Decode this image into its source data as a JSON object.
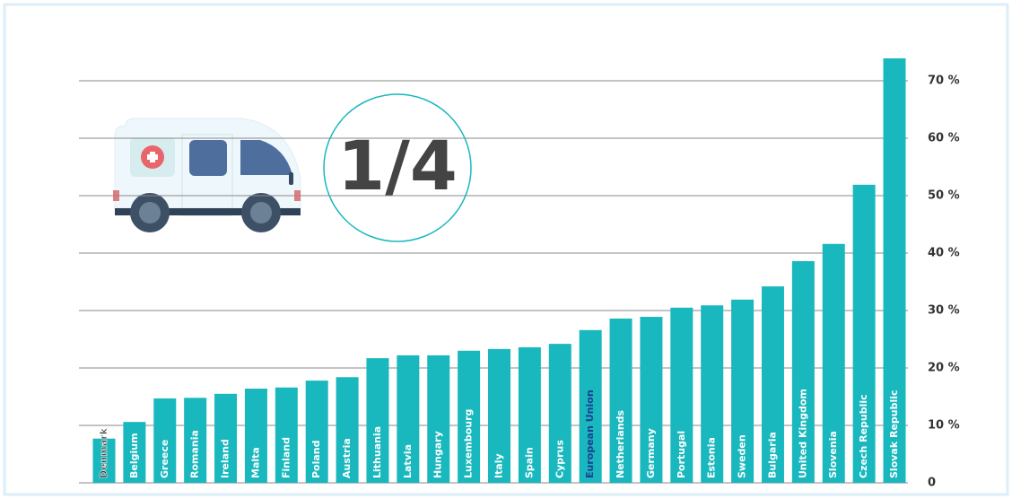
{
  "chart_data": {
    "type": "bar",
    "annotation": "1/4",
    "categories": [
      "Denmark",
      "Belgium",
      "Greece",
      "Romania",
      "Ireland",
      "Malta",
      "Finland",
      "Poland",
      "Austria",
      "Lithuania",
      "Latvia",
      "Hungary",
      "Luxembourg",
      "Italy",
      "Spain",
      "Cyprus",
      "European Union",
      "Netherlands",
      "Germany",
      "Portugal",
      "Estonia",
      "Sweden",
      "Bulgaria",
      "United Kingdom",
      "Slovenia",
      "Czech Republic",
      "Slovak Republic"
    ],
    "values": [
      7.7,
      10.6,
      14.7,
      14.8,
      15.5,
      16.4,
      16.6,
      17.8,
      18.4,
      21.7,
      22.2,
      22.2,
      23.0,
      23.3,
      23.6,
      24.2,
      26.6,
      28.6,
      28.9,
      30.5,
      30.9,
      31.9,
      34.2,
      38.6,
      41.6,
      51.9,
      73.9
    ],
    "color": "#19b8be",
    "label_colors": [
      "#333333",
      "#ffffff",
      "#ffffff",
      "#ffffff",
      "#ffffff",
      "#ffffff",
      "#ffffff",
      "#ffffff",
      "#ffffff",
      "#ffffff",
      "#ffffff",
      "#ffffff",
      "#ffffff",
      "#ffffff",
      "#ffffff",
      "#ffffff",
      "#1c3f94",
      "#ffffff",
      "#ffffff",
      "#ffffff",
      "#ffffff",
      "#ffffff",
      "#ffffff",
      "#ffffff",
      "#ffffff",
      "#ffffff",
      "#ffffff"
    ],
    "ylim": [
      0,
      75
    ],
    "yticks": [
      0,
      {
        "value": 10,
        "label": "10 %"
      },
      {
        "value": 20,
        "label": "20 %"
      },
      {
        "value": 30,
        "label": "30 %"
      },
      {
        "value": 40,
        "label": "40 %"
      },
      {
        "value": 50,
        "label": "50 %"
      },
      {
        "value": 60,
        "label": "60 %"
      },
      {
        "value": 70,
        "label": "70 %"
      }
    ],
    "grid": true
  }
}
